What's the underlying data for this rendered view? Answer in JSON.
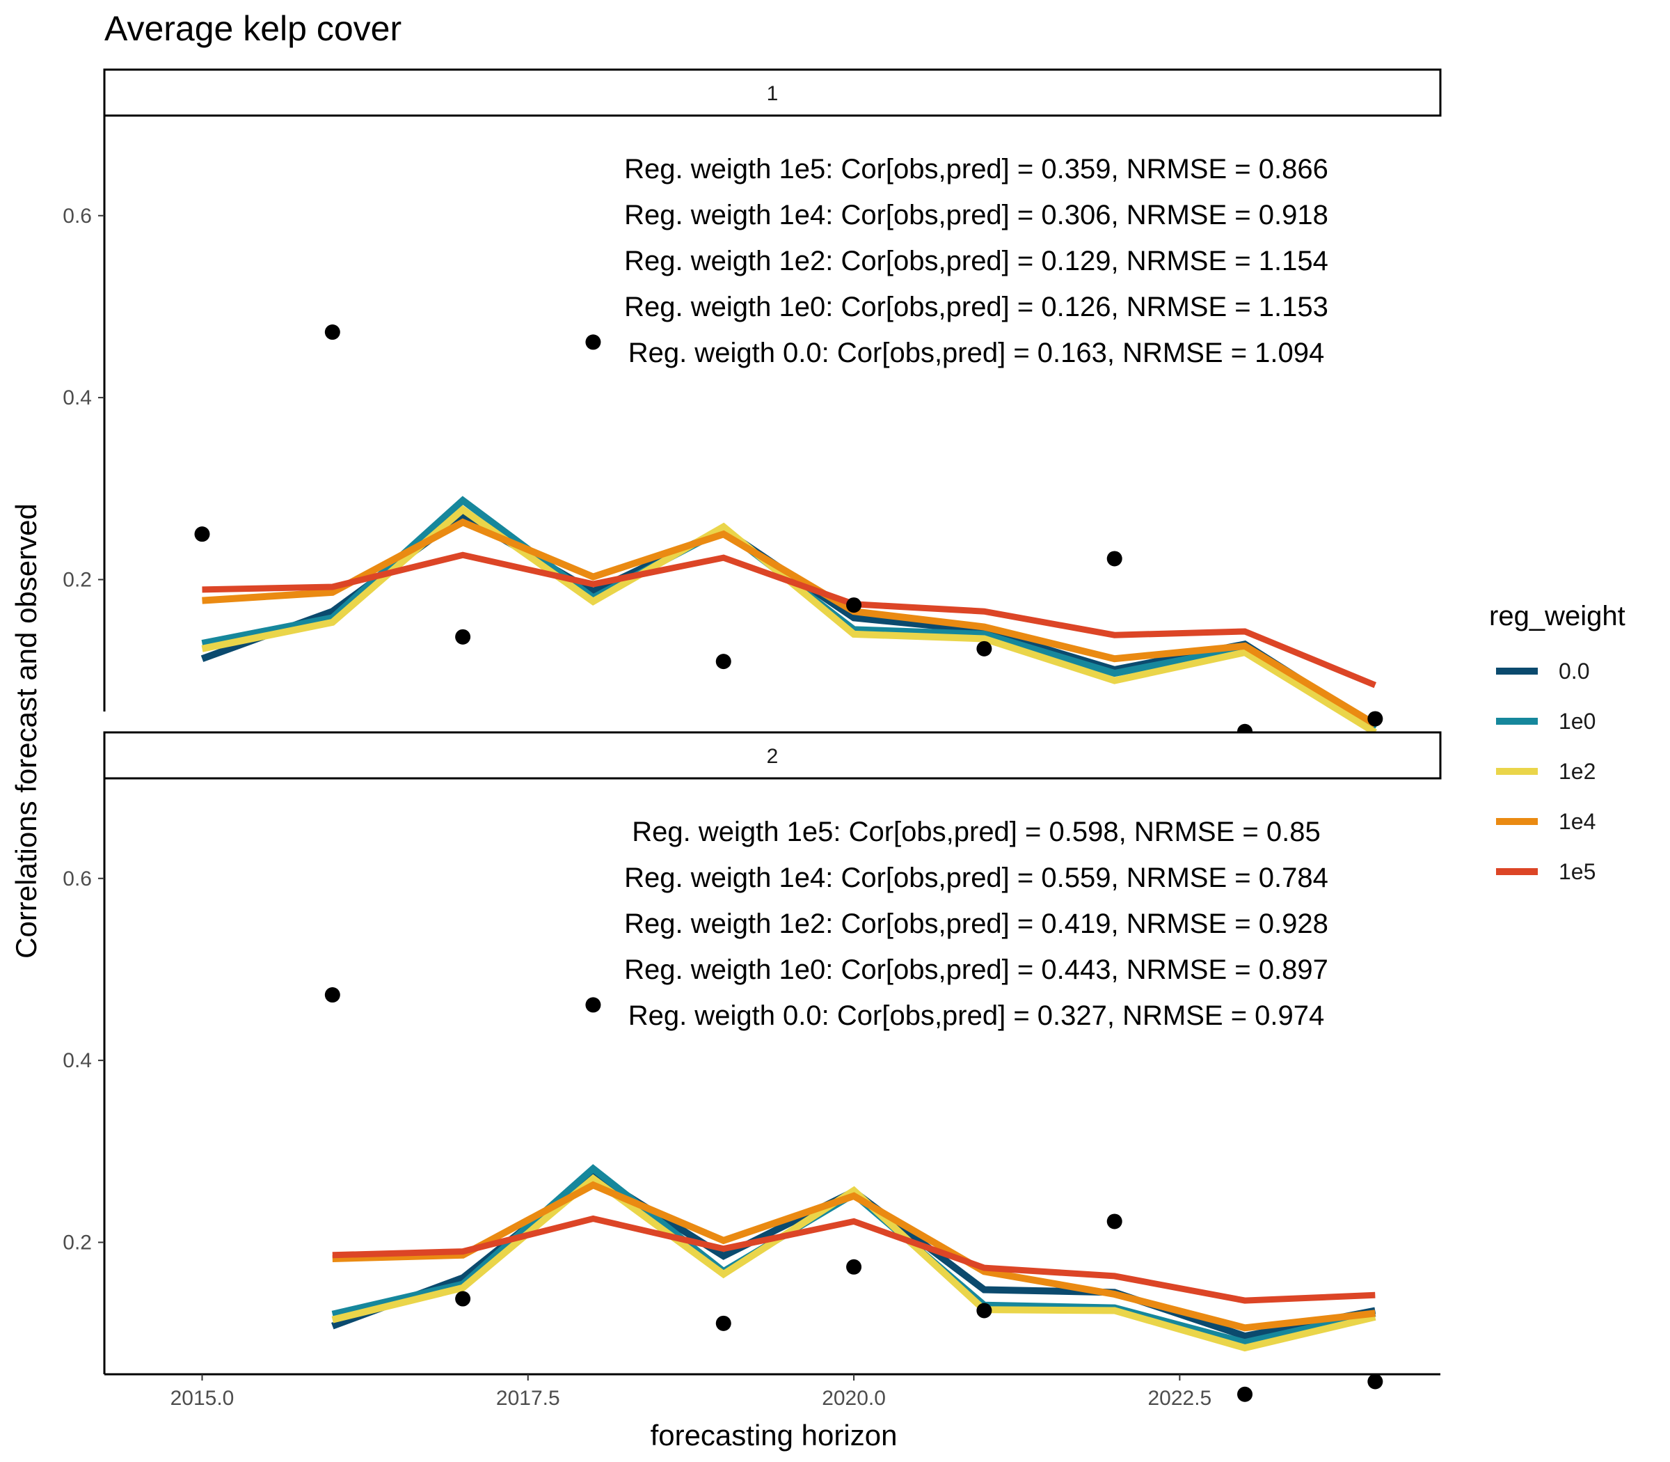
{
  "title": "Average kelp cover",
  "xlabel": "forecasting horizon",
  "ylabel": "Correlations forecast and observed",
  "legend": {
    "title": "reg_weight",
    "position": "right",
    "items": [
      {
        "label": "0.0",
        "color": "#0b4a6e"
      },
      {
        "label": "1e0",
        "color": "#16879c"
      },
      {
        "label": "1e2",
        "color": "#ead54a"
      },
      {
        "label": "1e4",
        "color": "#ea8a12"
      },
      {
        "label": "1e5",
        "color": "#dc4526"
      }
    ]
  },
  "chart_data": {
    "type": "line",
    "xlim": [
      2014.25,
      2024.5
    ],
    "ylim": [
      0.055,
      0.71
    ],
    "x_ticks": [
      2015.0,
      2017.5,
      2020.0,
      2022.5
    ],
    "x_tick_labels": [
      "2015.0",
      "2017.5",
      "2020.0",
      "2022.5"
    ],
    "y_ticks": [
      0.2,
      0.4,
      0.6
    ],
    "y_tick_labels": [
      "0.2",
      "0.4",
      "0.6"
    ],
    "grid": false,
    "panels": [
      {
        "strip_label": "1",
        "annotations": [
          "Reg. weigth 1e5: Cor[obs,pred] = 0.359, NRMSE =  0.866",
          "Reg. weigth 1e4: Cor[obs,pred] = 0.306, NRMSE =  0.918",
          "Reg. weigth 1e2: Cor[obs,pred] = 0.129, NRMSE =  1.154",
          "Reg. weigth 1e0: Cor[obs,pred] = 0.126, NRMSE =  1.153",
          "Reg. weigth 0.0: Cor[obs,pred] = 0.163, NRMSE =  1.094"
        ],
        "points": {
          "x": [
            2015,
            2016,
            2017,
            2018,
            2019,
            2020,
            2021,
            2022,
            2023,
            2024
          ],
          "y": [
            0.25,
            0.472,
            0.137,
            0.461,
            0.11,
            0.172,
            0.124,
            0.223,
            0.033,
            0.047
          ]
        },
        "series": [
          {
            "name": "0.0",
            "x": [
              2015,
              2016,
              2017,
              2018,
              2019,
              2020,
              2021,
              2022,
              2023,
              2024
            ],
            "y": [
              0.113,
              0.165,
              0.27,
              0.187,
              0.255,
              0.158,
              0.144,
              0.101,
              0.129,
              0.038
            ]
          },
          {
            "name": "1e0",
            "x": [
              2015,
              2016,
              2017,
              2018,
              2019,
              2020,
              2021,
              2022,
              2023,
              2024
            ],
            "y": [
              0.13,
              0.158,
              0.287,
              0.18,
              0.255,
              0.145,
              0.14,
              0.097,
              0.125,
              0.036
            ]
          },
          {
            "name": "1e2",
            "x": [
              2015,
              2016,
              2017,
              2018,
              2019,
              2020,
              2021,
              2022,
              2023,
              2024
            ],
            "y": [
              0.124,
              0.153,
              0.277,
              0.176,
              0.258,
              0.14,
              0.135,
              0.089,
              0.12,
              0.032
            ]
          },
          {
            "name": "1e4",
            "x": [
              2015,
              2016,
              2017,
              2018,
              2019,
              2020,
              2021,
              2022,
              2023,
              2024
            ],
            "y": [
              0.177,
              0.186,
              0.263,
              0.203,
              0.25,
              0.165,
              0.148,
              0.113,
              0.127,
              0.041
            ]
          },
          {
            "name": "1e5",
            "x": [
              2015,
              2016,
              2017,
              2018,
              2019,
              2020,
              2021,
              2022,
              2023,
              2024
            ],
            "y": [
              0.189,
              0.192,
              0.227,
              0.195,
              0.224,
              0.173,
              0.165,
              0.139,
              0.143,
              0.084
            ]
          }
        ]
      },
      {
        "strip_label": "2",
        "annotations": [
          "Reg. weigth 1e5: Cor[obs,pred] = 0.598, NRMSE =  0.85",
          "Reg. weigth 1e4: Cor[obs,pred] = 0.559, NRMSE =  0.784",
          "Reg. weigth 1e2: Cor[obs,pred] = 0.419, NRMSE =  0.928",
          "Reg. weigth 1e0: Cor[obs,pred] = 0.443, NRMSE =  0.897",
          "Reg. weigth 0.0: Cor[obs,pred] = 0.327, NRMSE =  0.974"
        ],
        "points": {
          "x": [
            2016,
            2017,
            2018,
            2019,
            2020,
            2021,
            2022,
            2023,
            2024
          ],
          "y": [
            0.472,
            0.138,
            0.461,
            0.111,
            0.173,
            0.125,
            0.223,
            0.033,
            0.047
          ]
        },
        "series": [
          {
            "name": "0.0",
            "x": [
              2016,
              2017,
              2018,
              2019,
              2020,
              2021,
              2022,
              2023,
              2024
            ],
            "y": [
              0.108,
              0.161,
              0.275,
              0.185,
              0.256,
              0.148,
              0.145,
              0.097,
              0.125
            ]
          },
          {
            "name": "1e0",
            "x": [
              2016,
              2017,
              2018,
              2019,
              2020,
              2021,
              2022,
              2023,
              2024
            ],
            "y": [
              0.121,
              0.154,
              0.281,
              0.168,
              0.253,
              0.131,
              0.128,
              0.09,
              0.122
            ]
          },
          {
            "name": "1e2",
            "x": [
              2016,
              2017,
              2018,
              2019,
              2020,
              2021,
              2022,
              2023,
              2024
            ],
            "y": [
              0.115,
              0.15,
              0.27,
              0.165,
              0.257,
              0.126,
              0.125,
              0.084,
              0.118
            ]
          },
          {
            "name": "1e4",
            "x": [
              2016,
              2017,
              2018,
              2019,
              2020,
              2021,
              2022,
              2023,
              2024
            ],
            "y": [
              0.182,
              0.186,
              0.263,
              0.202,
              0.251,
              0.168,
              0.143,
              0.106,
              0.122
            ]
          },
          {
            "name": "1e5",
            "x": [
              2016,
              2017,
              2018,
              2019,
              2020,
              2021,
              2022,
              2023,
              2024
            ],
            "y": [
              0.186,
              0.19,
              0.226,
              0.193,
              0.223,
              0.172,
              0.163,
              0.136,
              0.142
            ]
          }
        ]
      }
    ]
  }
}
